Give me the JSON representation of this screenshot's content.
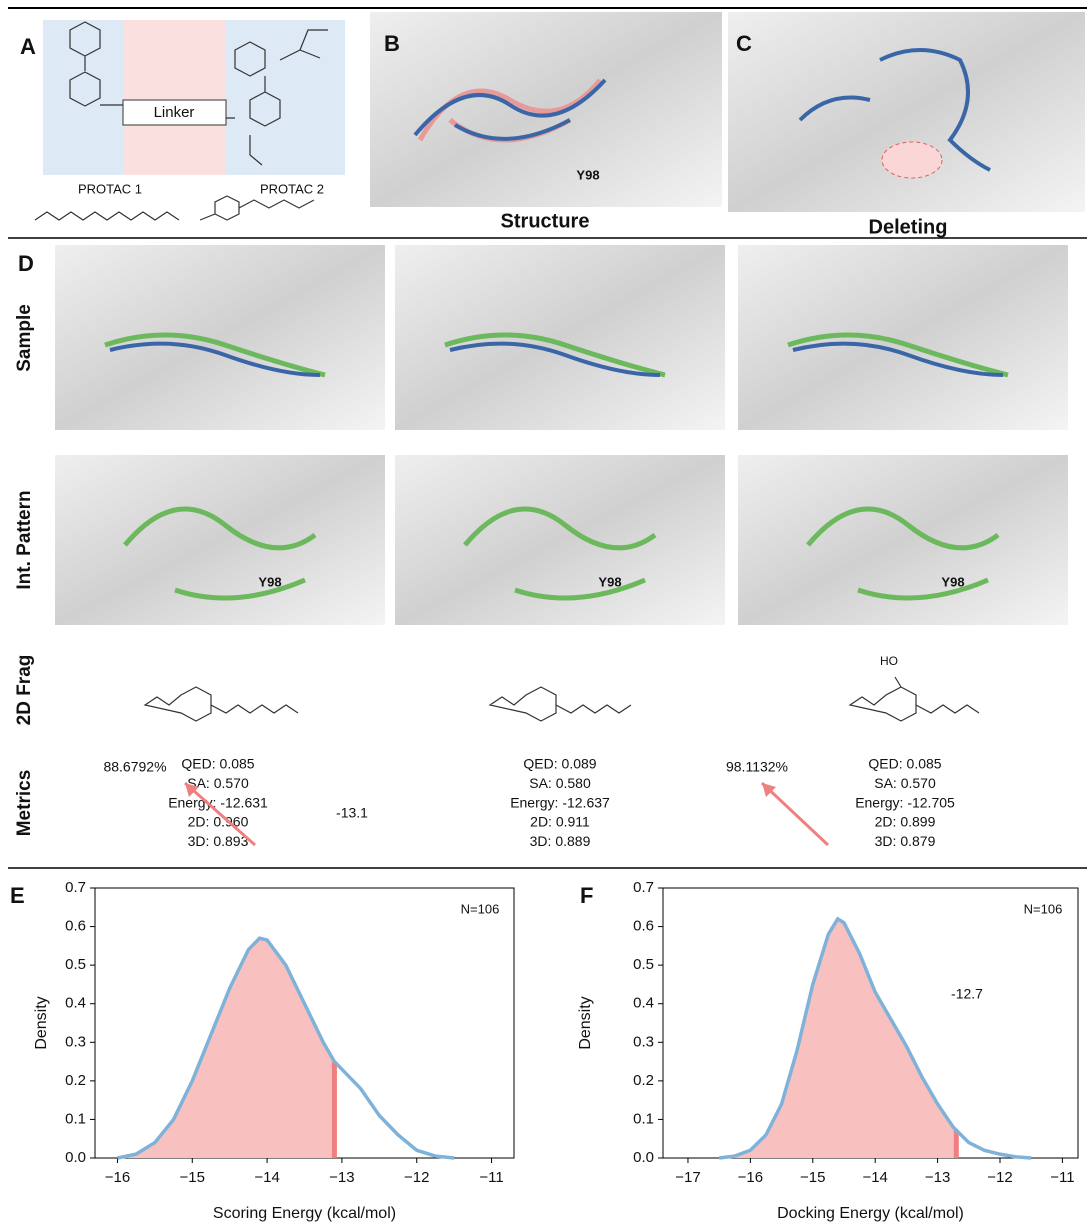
{
  "panels": {
    "labels": [
      "A",
      "B",
      "C",
      "D",
      "E",
      "F"
    ]
  },
  "panel_a": {
    "linker": "Linker",
    "protac1": "PROTAC 1",
    "protac2": "PROTAC 2"
  },
  "panel_b": {
    "caption": "Structure",
    "residue": "Y98"
  },
  "panel_c": {
    "caption": "Deleting"
  },
  "panel_d": {
    "row_labels": [
      "Sample",
      "Int. Pattern",
      "2D Frag",
      "Metrics"
    ],
    "residue_labels": [
      "Y98",
      "Y98",
      "Y98"
    ],
    "fragment_label": "HO",
    "metrics": [
      [
        "QED: 0.085",
        "SA: 0.570",
        "Energy: -12.631",
        "2D: 0.960",
        "3D: 0.893"
      ],
      [
        "QED: 0.089",
        "SA: 0.580",
        "Energy: -12.637",
        "2D: 0.911",
        "3D: 0.889"
      ],
      [
        "QED: 0.085",
        "SA: 0.570",
        "Energy: -12.705",
        "2D: 0.899",
        "3D: 0.879"
      ]
    ]
  },
  "chart_data": [
    {
      "type": "density",
      "xlabel": "Scoring Energy (kcal/mol)",
      "ylabel": "Density",
      "x": [
        -16,
        -15.75,
        -15.5,
        -15.25,
        -15,
        -14.75,
        -14.5,
        -14.25,
        -14.1,
        -14,
        -13.75,
        -13.5,
        -13.25,
        -13.1,
        -13,
        -12.75,
        -12.5,
        -12.25,
        -12,
        -11.75,
        -11.5
      ],
      "series": [
        {
          "color": "#7fb2d9",
          "values": [
            0.0,
            0.01,
            0.04,
            0.1,
            0.2,
            0.32,
            0.44,
            0.54,
            0.57,
            0.565,
            0.5,
            0.4,
            0.3,
            0.25,
            0.23,
            0.18,
            0.11,
            0.06,
            0.02,
            0.005,
            0.0
          ]
        }
      ],
      "fill_color": "#f9c0c0",
      "threshold": -13.1,
      "threshold_color": "#f08080",
      "percent_label": "88.6792%",
      "n_label": "N=106",
      "xlim": [
        -16.3,
        -10.7
      ],
      "xticks": [
        {
          "value": -16,
          "label": "−16"
        },
        {
          "value": -15,
          "label": "−15"
        },
        {
          "value": -14,
          "label": "−14"
        },
        {
          "value": -13,
          "label": "−13"
        },
        {
          "value": -12,
          "label": "−12"
        },
        {
          "value": -11,
          "label": "−11"
        }
      ],
      "ylim": [
        0,
        0.7
      ],
      "yticks": [
        {
          "value": 0,
          "label": "0.0"
        },
        0.1,
        0.2,
        0.3,
        0.4,
        0.5,
        0.6,
        0.7
      ]
    },
    {
      "type": "density",
      "xlabel": "Docking Energy (kcal/mol)",
      "ylabel": "Density",
      "x": [
        -16.5,
        -16.25,
        -16,
        -15.75,
        -15.5,
        -15.25,
        -15,
        -14.75,
        -14.6,
        -14.5,
        -14.25,
        -14,
        -13.75,
        -13.5,
        -13.25,
        -13,
        -12.75,
        -12.5,
        -12.25,
        -12,
        -11.75,
        -11.5
      ],
      "series": [
        {
          "color": "#7fb2d9",
          "values": [
            0.0,
            0.005,
            0.02,
            0.06,
            0.14,
            0.28,
            0.45,
            0.58,
            0.62,
            0.61,
            0.53,
            0.43,
            0.36,
            0.29,
            0.21,
            0.14,
            0.08,
            0.04,
            0.02,
            0.01,
            0.003,
            0.0
          ]
        }
      ],
      "fill_color": "#f9c0c0",
      "threshold": -12.7,
      "threshold_color": "#f08080",
      "percent_label": "98.1132%",
      "n_label": "N=106",
      "xlim": [
        -17.4,
        -10.75
      ],
      "xticks": [
        {
          "value": -17,
          "label": "−17"
        },
        {
          "value": -16,
          "label": "−16"
        },
        {
          "value": -15,
          "label": "−15"
        },
        {
          "value": -14,
          "label": "−14"
        },
        {
          "value": -13,
          "label": "−13"
        },
        {
          "value": -12,
          "label": "−12"
        },
        {
          "value": -11,
          "label": "−11"
        }
      ],
      "ylim": [
        0,
        0.7
      ],
      "yticks": [
        {
          "value": 0,
          "label": "0.0"
        },
        0.1,
        0.2,
        0.3,
        0.4,
        0.5,
        0.6,
        0.7
      ]
    }
  ]
}
